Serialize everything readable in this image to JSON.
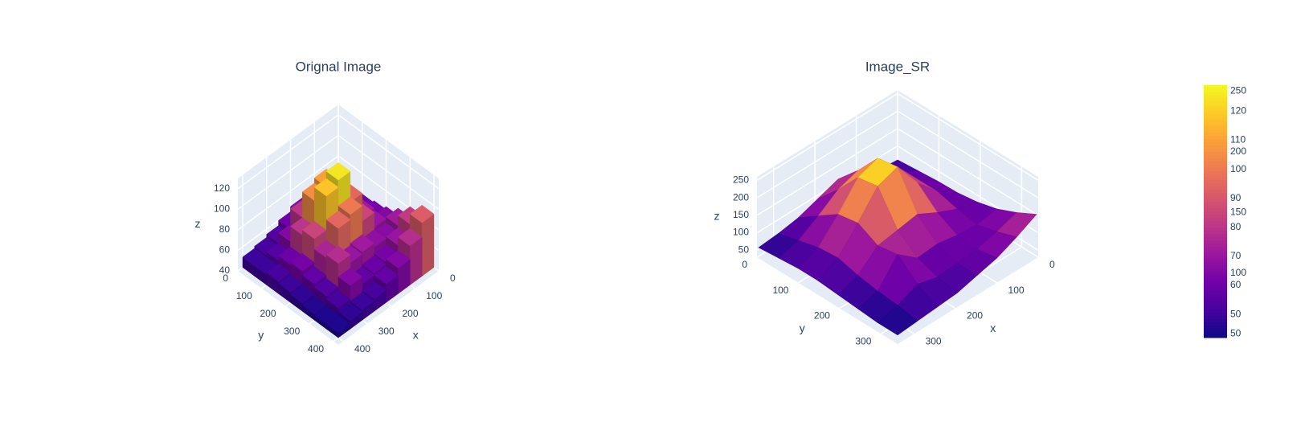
{
  "chart_data": [
    {
      "type": "bar3d",
      "title": "Orignal Image",
      "xaxis_title": "x",
      "yaxis_title": "y",
      "zaxis_title": "z",
      "x": [
        0,
        50,
        100,
        150,
        200,
        250,
        300,
        350
      ],
      "y": [
        0,
        50,
        100,
        150,
        200,
        250,
        300,
        350
      ],
      "z": [
        [
          55,
          58,
          62,
          65,
          60,
          55,
          52,
          50
        ],
        [
          58,
          65,
          75,
          85,
          80,
          65,
          55,
          50
        ],
        [
          60,
          70,
          90,
          110,
          105,
          80,
          60,
          52
        ],
        [
          62,
          72,
          95,
          125,
          118,
          85,
          62,
          50
        ],
        [
          65,
          70,
          85,
          100,
          95,
          75,
          58,
          48
        ],
        [
          72,
          66,
          68,
          72,
          70,
          78,
          55,
          46
        ],
        [
          82,
          70,
          62,
          60,
          58,
          65,
          52,
          45
        ],
        [
          92,
          78,
          65,
          58,
          52,
          50,
          48,
          45
        ]
      ],
      "xlim": [
        0,
        420
      ],
      "ylim": [
        0,
        420
      ],
      "zlim": [
        40,
        130
      ],
      "xticks": [
        0,
        100,
        200,
        300,
        400
      ],
      "yticks": [
        0,
        100,
        200,
        300,
        400
      ],
      "zticks": [
        40,
        60,
        80,
        100,
        120
      ],
      "clim": [
        42,
        129
      ],
      "cticks": [
        50,
        60,
        70,
        80,
        90,
        100,
        110,
        120
      ]
    },
    {
      "type": "surface",
      "title": "Image_SR",
      "xaxis_title": "x",
      "yaxis_title": "y",
      "zaxis_title": "z",
      "x": [
        0,
        48,
        96,
        144,
        192,
        240,
        288,
        336
      ],
      "y": [
        0,
        48,
        96,
        144,
        192,
        240,
        288,
        336
      ],
      "z": [
        [
          60,
          65,
          80,
          110,
          90,
          70,
          60,
          55
        ],
        [
          65,
          90,
          130,
          170,
          150,
          110,
          75,
          60
        ],
        [
          70,
          110,
          180,
          240,
          220,
          150,
          90,
          65
        ],
        [
          72,
          110,
          170,
          250,
          230,
          160,
          95,
          65
        ],
        [
          80,
          95,
          120,
          150,
          140,
          130,
          80,
          60
        ],
        [
          95,
          85,
          90,
          100,
          95,
          140,
          70,
          55
        ],
        [
          120,
          100,
          85,
          80,
          75,
          90,
          65,
          50
        ],
        [
          150,
          120,
          95,
          80,
          65,
          60,
          55,
          50
        ]
      ],
      "xlim": [
        0,
        340
      ],
      "ylim": [
        0,
        340
      ],
      "zlim": [
        30,
        260
      ],
      "xticks": [
        0,
        100,
        200,
        300
      ],
      "yticks": [
        0,
        100,
        200,
        300
      ],
      "zticks": [
        50,
        100,
        150,
        200,
        250
      ],
      "clim": [
        47,
        255
      ],
      "cticks": [
        50,
        100,
        150,
        200,
        250
      ]
    }
  ],
  "colorscale": [
    "#0d0887",
    "#46039f",
    "#7201a8",
    "#9c179e",
    "#bd3786",
    "#d8576b",
    "#ed7953",
    "#fb9f3a",
    "#fdca26",
    "#f0f921"
  ]
}
